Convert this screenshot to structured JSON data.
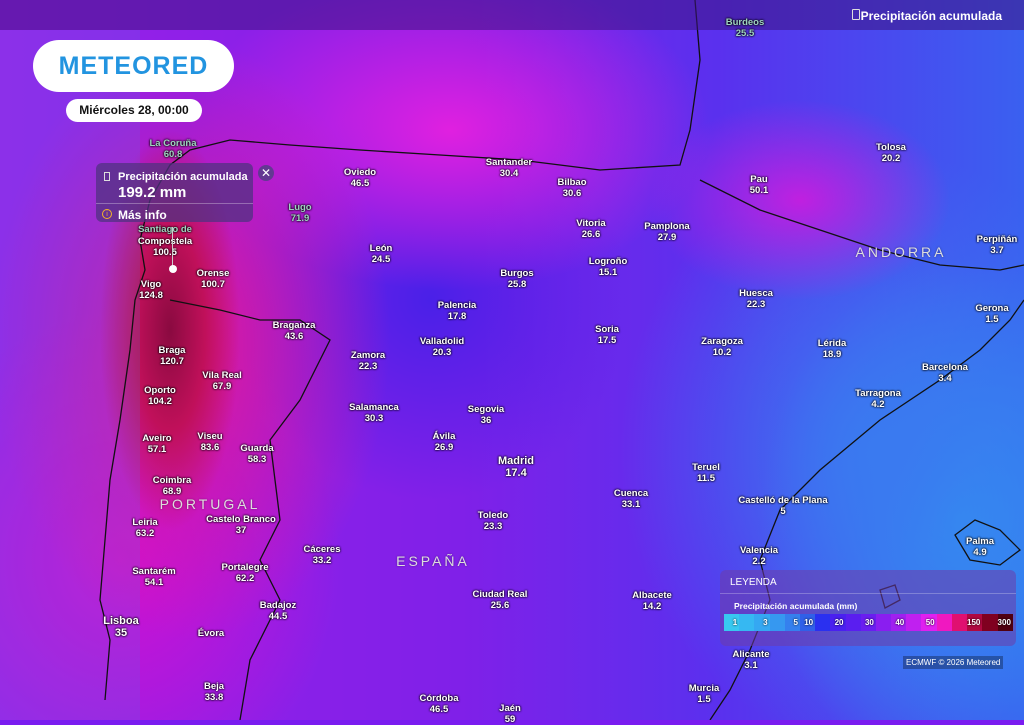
{
  "header": {
    "title": "Precipitación acumulada",
    "icon": "rain-gauge-icon"
  },
  "logo": "METEORED",
  "date": "Miércoles 28, 00:00",
  "popup": {
    "title": "Precipitación acumulada",
    "value": "199.2 mm",
    "more": "Más info",
    "close": "✕"
  },
  "countries": [
    "PORTUGAL",
    "ESPAÑA",
    "ANDORRA"
  ],
  "cities": [
    {
      "name": "Burdeos",
      "value": "25.5"
    },
    {
      "name": "Tolosa",
      "value": "20.2"
    },
    {
      "name": "Oviedo",
      "value": "46.5"
    },
    {
      "name": "Santander",
      "value": "30.4"
    },
    {
      "name": "Bilbao",
      "value": "30.6"
    },
    {
      "name": "Pau",
      "value": "50.1"
    },
    {
      "name": "Vitoria",
      "value": "26.6"
    },
    {
      "name": "Pamplona",
      "value": "27.9"
    },
    {
      "name": "Perpiñán",
      "value": "3.7"
    },
    {
      "name": "León",
      "value": "24.5"
    },
    {
      "name": "Burgos",
      "value": "25.8"
    },
    {
      "name": "Logroño",
      "value": "15.1"
    },
    {
      "name": "Huesca",
      "value": "22.3"
    },
    {
      "name": "Gerona",
      "value": "1.5"
    },
    {
      "name": "Palencia",
      "value": "17.8"
    },
    {
      "name": "Soria",
      "value": "17.5"
    },
    {
      "name": "Zaragoza",
      "value": "10.2"
    },
    {
      "name": "Lérida",
      "value": "18.9"
    },
    {
      "name": "Braganza",
      "value": "43.6"
    },
    {
      "name": "Zamora",
      "value": "22.3"
    },
    {
      "name": "Valladolid",
      "value": "20.3"
    },
    {
      "name": "Barcelona",
      "value": "3.4"
    },
    {
      "name": "Tarragona",
      "value": "4.2"
    },
    {
      "name": "Salamanca",
      "value": "30.3"
    },
    {
      "name": "Segovia",
      "value": "36"
    },
    {
      "name": "Vila Real",
      "value": "67.9"
    },
    {
      "name": "Oporto",
      "value": "104.2"
    },
    {
      "name": "Braga",
      "value": "120.7"
    },
    {
      "name": "Aveiro",
      "value": "57.1"
    },
    {
      "name": "Viseu",
      "value": "83.6"
    },
    {
      "name": "Guarda",
      "value": "58.3"
    },
    {
      "name": "Ávila",
      "value": "26.9"
    },
    {
      "name": "Madrid",
      "value": "17.4"
    },
    {
      "name": "Teruel",
      "value": "11.5"
    },
    {
      "name": "Coimbra",
      "value": "68.9"
    },
    {
      "name": "Cuenca",
      "value": "33.1"
    },
    {
      "name": "Castelló de la Plana",
      "value": "5"
    },
    {
      "name": "Leiria",
      "value": "63.2"
    },
    {
      "name": "Castelo Branco",
      "value": "37"
    },
    {
      "name": "Toledo",
      "value": "23.3"
    },
    {
      "name": "Cáceres",
      "value": "33.2"
    },
    {
      "name": "Valencia",
      "value": "2.2"
    },
    {
      "name": "Palma",
      "value": "4.9"
    },
    {
      "name": "Santarém",
      "value": "54.1"
    },
    {
      "name": "Portalegre",
      "value": "62.2"
    },
    {
      "name": "Ciudad Real",
      "value": "25.6"
    },
    {
      "name": "Albacete",
      "value": "14.2"
    },
    {
      "name": "Badajoz",
      "value": "44.5"
    },
    {
      "name": "Lisboa",
      "value": "35"
    },
    {
      "name": "Évora",
      "value": ""
    },
    {
      "name": "Alicante",
      "value": "3.1"
    },
    {
      "name": "Beja",
      "value": "33.8"
    },
    {
      "name": "Murcia",
      "value": "1.5"
    },
    {
      "name": "Córdoba",
      "value": "46.5"
    },
    {
      "name": "Jaén",
      "value": "59"
    },
    {
      "name": "Compostela",
      "value": "100.5"
    },
    {
      "name": "Orense",
      "value": "100.7"
    },
    {
      "name": "Vigo",
      "value": "124.8"
    },
    {
      "name": "La Coruña",
      "value": "60.8"
    },
    {
      "name": "Santiago de",
      "value": ""
    },
    {
      "name": "Lugo",
      "value": "71.9"
    }
  ],
  "legend": {
    "title": "LEYENDA",
    "subtitle": "Precipitación acumulada (mm)",
    "stops": [
      {
        "label": "1",
        "color": "#38c8f0"
      },
      {
        "label": "",
        "color": "#36b8f2"
      },
      {
        "label": "3",
        "color": "#35a8f2"
      },
      {
        "label": "",
        "color": "#3698f0"
      },
      {
        "label": "5",
        "color": "#3580ee"
      },
      {
        "label": "10",
        "color": "#3060e8"
      },
      {
        "label": "",
        "color": "#2a30f0"
      },
      {
        "label": "20",
        "color": "#4a20f0"
      },
      {
        "label": "",
        "color": "#5a1ef0"
      },
      {
        "label": "30",
        "color": "#6a1ef0"
      },
      {
        "label": "",
        "color": "#8a1ef0"
      },
      {
        "label": "40",
        "color": "#a020f0"
      },
      {
        "label": "",
        "color": "#c020f0"
      },
      {
        "label": "50",
        "color": "#e020f0"
      },
      {
        "label": "",
        "color": "#f018c0"
      },
      {
        "label": "",
        "color": "#e01070"
      },
      {
        "label": "150",
        "color": "#b00840"
      },
      {
        "label": "",
        "color": "#800020"
      },
      {
        "label": "300",
        "color": "#500010"
      }
    ]
  },
  "credit": "ECMWF © 2026 Meteored"
}
